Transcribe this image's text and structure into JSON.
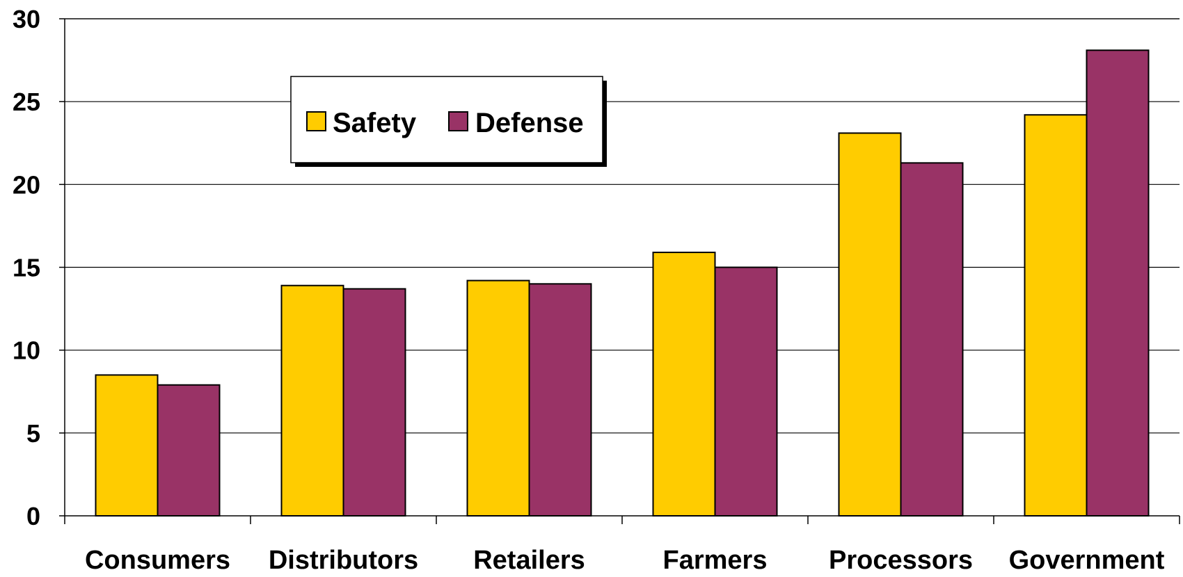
{
  "chart_data": {
    "type": "bar",
    "title": "",
    "xlabel": "",
    "ylabel": "",
    "categories": [
      "Consumers",
      "Distributors",
      "Retailers",
      "Farmers",
      "Processors",
      "Government"
    ],
    "series": [
      {
        "name": "Safety",
        "color": "#FFCC00",
        "values": [
          8.5,
          13.9,
          14.2,
          15.9,
          23.1,
          24.2
        ]
      },
      {
        "name": "Defense",
        "color": "#993366",
        "values": [
          7.9,
          13.7,
          14.0,
          15.0,
          21.3,
          28.1
        ]
      }
    ],
    "ylim": [
      0,
      30
    ],
    "yticks": [
      0,
      5,
      10,
      15,
      20,
      25,
      30
    ],
    "grid": true,
    "legend_position": "top-left"
  }
}
